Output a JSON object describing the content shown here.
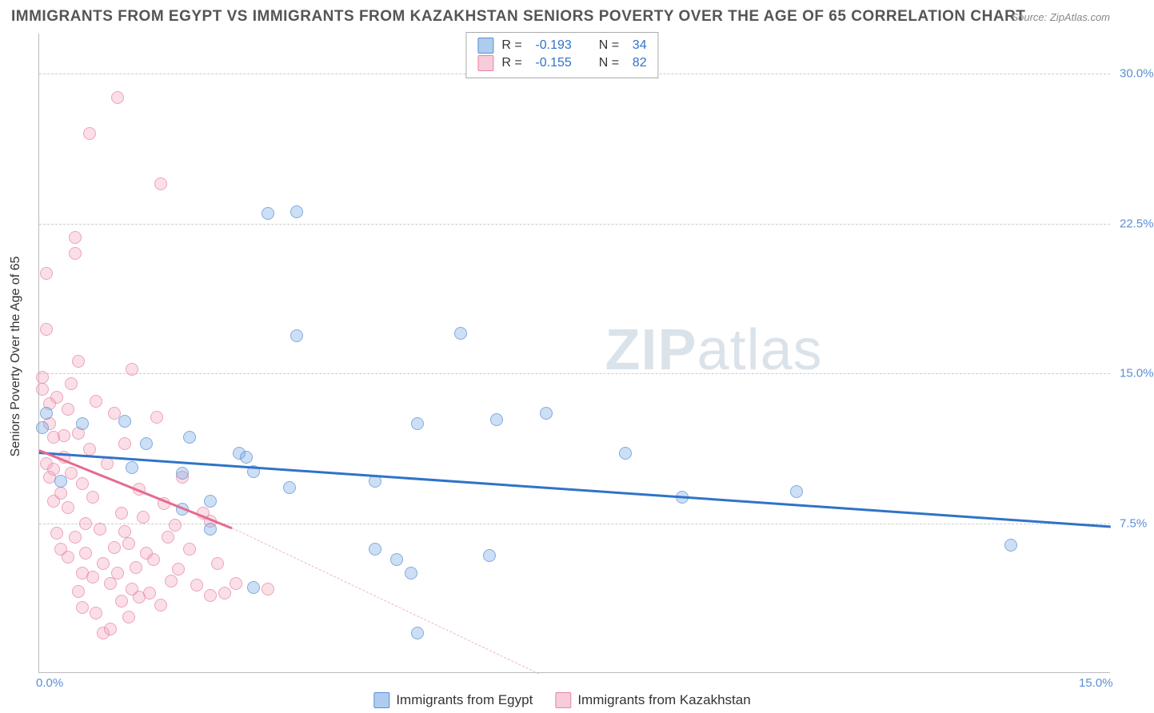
{
  "title": "IMMIGRANTS FROM EGYPT VS IMMIGRANTS FROM KAZAKHSTAN SENIORS POVERTY OVER THE AGE OF 65 CORRELATION CHART",
  "source": "Source: ZipAtlas.com",
  "watermark_bold": "ZIP",
  "watermark_light": "atlas",
  "yaxis_title": "Seniors Poverty Over the Age of 65",
  "chart": {
    "type": "scatter",
    "xlim": [
      0,
      15
    ],
    "ylim": [
      0,
      32
    ],
    "ytick_positions": [
      7.5,
      15.0,
      22.5,
      30.0
    ],
    "ytick_labels": [
      "7.5%",
      "15.0%",
      "22.5%",
      "30.0%"
    ],
    "xtick_positions": [
      0,
      15
    ],
    "xtick_labels": [
      "0.0%",
      "15.0%"
    ],
    "grid_color": "#cccccc",
    "background_color": "#ffffff",
    "series": [
      {
        "name": "Immigrants from Egypt",
        "color_fill": "rgba(120,170,225,0.5)",
        "color_stroke": "#5a8fd6",
        "trend_color": "#2f73c9",
        "marker_size": 16,
        "R": "-0.193",
        "N": "34",
        "trendline": {
          "x1": 0,
          "y1": 11.1,
          "x2": 15,
          "y2": 7.4
        },
        "points": [
          [
            0.05,
            12.3
          ],
          [
            0.1,
            13.0
          ],
          [
            0.3,
            9.6
          ],
          [
            0.6,
            12.5
          ],
          [
            1.2,
            12.6
          ],
          [
            1.3,
            10.3
          ],
          [
            1.5,
            11.5
          ],
          [
            2.0,
            10.0
          ],
          [
            2.1,
            11.8
          ],
          [
            2.0,
            8.2
          ],
          [
            2.4,
            8.6
          ],
          [
            2.4,
            7.2
          ],
          [
            2.8,
            11.0
          ],
          [
            2.9,
            10.8
          ],
          [
            3.0,
            10.1
          ],
          [
            3.2,
            23.0
          ],
          [
            3.5,
            9.3
          ],
          [
            3.6,
            23.1
          ],
          [
            3.0,
            4.3
          ],
          [
            3.6,
            16.9
          ],
          [
            4.7,
            9.6
          ],
          [
            4.7,
            6.2
          ],
          [
            5.2,
            5.0
          ],
          [
            5.0,
            5.7
          ],
          [
            5.3,
            2.0
          ],
          [
            5.3,
            12.5
          ],
          [
            5.9,
            17.0
          ],
          [
            6.4,
            12.7
          ],
          [
            6.3,
            5.9
          ],
          [
            7.1,
            13.0
          ],
          [
            8.2,
            11.0
          ],
          [
            9.0,
            8.8
          ],
          [
            10.6,
            9.1
          ],
          [
            13.6,
            6.4
          ]
        ]
      },
      {
        "name": "Immigrants from Kazakhstan",
        "color_fill": "rgba(240,160,185,0.45)",
        "color_stroke": "#e985a5",
        "trend_color": "#e56b8f",
        "marker_size": 16,
        "R": "-0.155",
        "N": "82",
        "trendline_solid": {
          "x1": 0,
          "y1": 11.2,
          "x2": 2.7,
          "y2": 7.3
        },
        "trendline_dashed": {
          "x1": 2.7,
          "y1": 7.3,
          "x2": 7.0,
          "y2": 0
        },
        "points": [
          [
            0.05,
            14.8
          ],
          [
            0.05,
            14.2
          ],
          [
            0.1,
            20.0
          ],
          [
            0.1,
            17.2
          ],
          [
            0.1,
            10.5
          ],
          [
            0.15,
            13.5
          ],
          [
            0.15,
            12.5
          ],
          [
            0.15,
            9.8
          ],
          [
            0.2,
            8.6
          ],
          [
            0.2,
            10.2
          ],
          [
            0.2,
            11.8
          ],
          [
            0.25,
            7.0
          ],
          [
            0.25,
            13.8
          ],
          [
            0.3,
            6.2
          ],
          [
            0.3,
            9.0
          ],
          [
            0.35,
            10.8
          ],
          [
            0.35,
            11.9
          ],
          [
            0.4,
            13.2
          ],
          [
            0.4,
            8.3
          ],
          [
            0.4,
            5.8
          ],
          [
            0.45,
            14.5
          ],
          [
            0.45,
            10.0
          ],
          [
            0.5,
            21.0
          ],
          [
            0.5,
            21.8
          ],
          [
            0.5,
            6.8
          ],
          [
            0.55,
            12.0
          ],
          [
            0.55,
            4.1
          ],
          [
            0.55,
            15.6
          ],
          [
            0.6,
            9.5
          ],
          [
            0.6,
            5.0
          ],
          [
            0.6,
            3.3
          ],
          [
            0.65,
            7.5
          ],
          [
            0.65,
            6.0
          ],
          [
            0.7,
            27.0
          ],
          [
            0.7,
            11.2
          ],
          [
            0.75,
            4.8
          ],
          [
            0.75,
            8.8
          ],
          [
            0.8,
            13.6
          ],
          [
            0.8,
            3.0
          ],
          [
            0.85,
            7.2
          ],
          [
            0.9,
            5.5
          ],
          [
            0.9,
            2.0
          ],
          [
            0.95,
            10.5
          ],
          [
            1.0,
            2.2
          ],
          [
            1.0,
            4.5
          ],
          [
            1.05,
            6.3
          ],
          [
            1.05,
            13.0
          ],
          [
            1.1,
            28.8
          ],
          [
            1.1,
            5.0
          ],
          [
            1.15,
            3.6
          ],
          [
            1.15,
            8.0
          ],
          [
            1.2,
            7.1
          ],
          [
            1.2,
            11.5
          ],
          [
            1.25,
            2.8
          ],
          [
            1.25,
            6.5
          ],
          [
            1.3,
            4.2
          ],
          [
            1.3,
            15.2
          ],
          [
            1.35,
            5.3
          ],
          [
            1.4,
            9.2
          ],
          [
            1.4,
            3.8
          ],
          [
            1.45,
            7.8
          ],
          [
            1.5,
            6.0
          ],
          [
            1.55,
            4.0
          ],
          [
            1.6,
            5.7
          ],
          [
            1.65,
            12.8
          ],
          [
            1.7,
            24.5
          ],
          [
            1.7,
            3.4
          ],
          [
            1.75,
            8.5
          ],
          [
            1.8,
            6.8
          ],
          [
            1.85,
            4.6
          ],
          [
            1.9,
            7.4
          ],
          [
            1.95,
            5.2
          ],
          [
            2.0,
            9.8
          ],
          [
            2.1,
            6.2
          ],
          [
            2.2,
            4.4
          ],
          [
            2.3,
            8.0
          ],
          [
            2.4,
            7.6
          ],
          [
            2.4,
            3.9
          ],
          [
            2.5,
            5.5
          ],
          [
            2.6,
            4.0
          ],
          [
            2.75,
            4.5
          ],
          [
            3.2,
            4.2
          ]
        ]
      }
    ]
  },
  "legend_top": [
    {
      "color": "blue",
      "R_label": "R =",
      "R_val": "-0.193",
      "N_label": "N =",
      "N_val": "34"
    },
    {
      "color": "pink",
      "R_label": "R =",
      "R_val": "-0.155",
      "N_label": "N =",
      "N_val": "82"
    }
  ],
  "legend_bottom": [
    {
      "color": "blue",
      "label": "Immigrants from Egypt"
    },
    {
      "color": "pink",
      "label": "Immigrants from Kazakhstan"
    }
  ]
}
